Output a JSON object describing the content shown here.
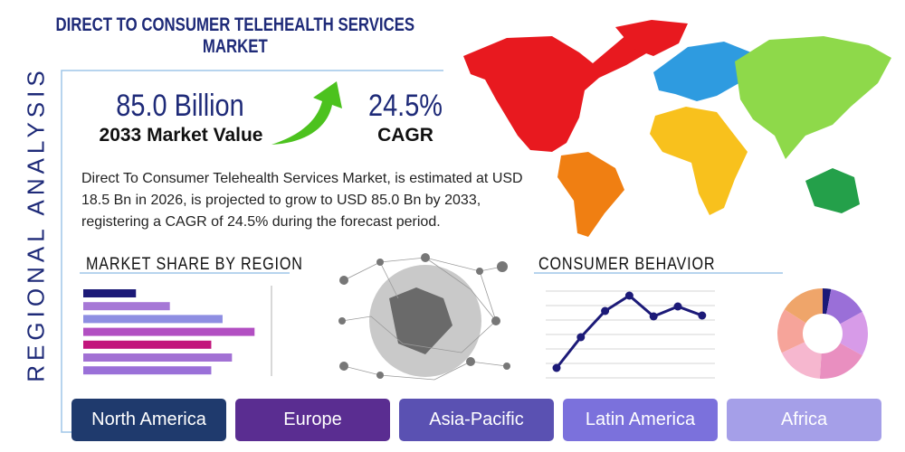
{
  "header": {
    "title": "DIRECT TO CONSUMER TELEHEALTH SERVICES MARKET",
    "side_label": "REGIONAL ANALYSIS"
  },
  "stats": [
    {
      "value": "85.0 Billion",
      "label": "2033 Market Value"
    },
    {
      "value": "24.5%",
      "label": "CAGR"
    }
  ],
  "description": "Direct To Consumer Telehealth Services Market, is estimated at USD 18.5 Bn in 2026, is projected to grow to USD 85.0 Bn by 2033, registering a CAGR of 24.5% during the forecast period.",
  "market_share": {
    "title": "MARKET SHARE BY REGION",
    "values": [
      28,
      46,
      74,
      91,
      68,
      79,
      68
    ],
    "colors": [
      "#1c1a78",
      "#a678d6",
      "#8e8ee2",
      "#b24fc2",
      "#c2157c",
      "#a271d4",
      "#9a70d8"
    ]
  },
  "consumer_behavior": {
    "title": "CONSUMER BEHAVIOR",
    "line_values": [
      13,
      47,
      76,
      93,
      70,
      81,
      71
    ],
    "line_color": "#1c1a78",
    "donut_values": [
      3,
      14,
      16,
      18,
      17,
      16,
      16
    ],
    "donut_colors": [
      "#1c1a78",
      "#9a6fd8",
      "#d79be8",
      "#e98fc0",
      "#f6b7cf",
      "#f6a49a",
      "#efa56a"
    ]
  },
  "tabs": [
    {
      "label": "North America",
      "color": "#1f3a6d"
    },
    {
      "label": "Europe",
      "color": "#5a2d91"
    },
    {
      "label": "Asia-Pacific",
      "color": "#5a51b2"
    },
    {
      "label": "Latin America",
      "color": "#7b71dc"
    },
    {
      "label": "Africa",
      "color": "#a59fe8"
    }
  ]
}
